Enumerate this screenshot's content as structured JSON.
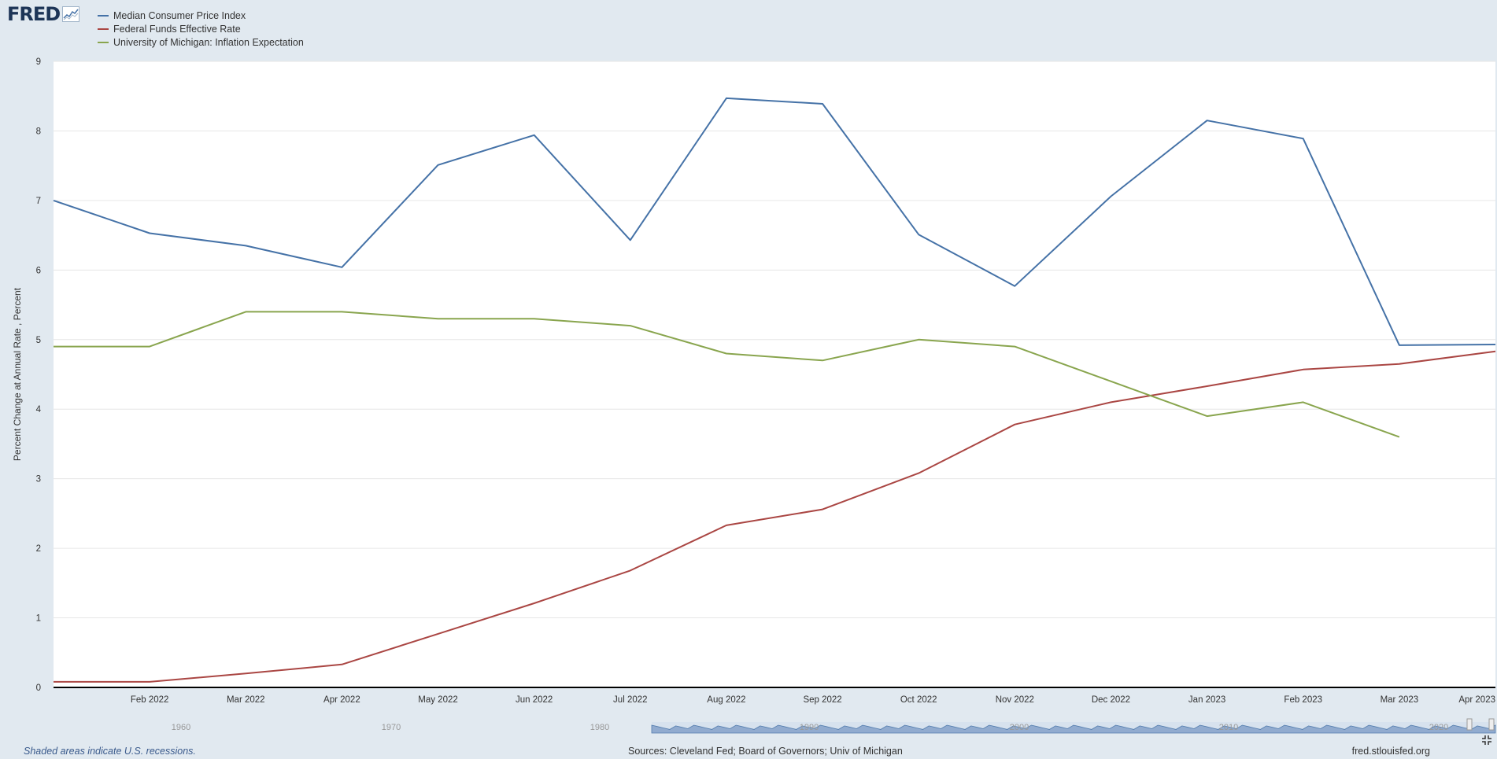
{
  "branding": {
    "logo_text": "FRED",
    "source_url": "fred.stlouisfed.org"
  },
  "footer": {
    "recession_note": "Shaded areas indicate U.S. recessions.",
    "sources": "Sources: Cleveland Fed; Board of Governors; Univ of Michigan"
  },
  "navigator": {
    "labels": [
      "1960",
      "1970",
      "1980",
      "1990",
      "2000",
      "2010",
      "2020"
    ]
  },
  "chart_data": {
    "type": "line",
    "title": "",
    "xlabel": "",
    "ylabel": "Percent Change at Annual Rate , Percent",
    "ylim": [
      0,
      9
    ],
    "yticks": [
      "0",
      "1",
      "2",
      "3",
      "4",
      "5",
      "6",
      "7",
      "8",
      "9"
    ],
    "x": [
      "2022-01",
      "2022-02",
      "2022-03",
      "2022-04",
      "2022-05",
      "2022-06",
      "2022-07",
      "2022-08",
      "2022-09",
      "2022-10",
      "2022-11",
      "2022-12",
      "2023-01",
      "2023-02",
      "2023-03",
      "2023-04"
    ],
    "xtick_labels": [
      "",
      "Feb 2022",
      "Mar 2022",
      "Apr 2022",
      "May 2022",
      "Jun 2022",
      "Jul 2022",
      "Aug 2022",
      "Sep 2022",
      "Oct 2022",
      "Nov 2022",
      "Dec 2022",
      "Jan 2023",
      "Feb 2023",
      "Mar 2023",
      "Apr 2023"
    ],
    "grid": true,
    "legend_position": "top-left",
    "series": [
      {
        "name": "Median Consumer Price Index",
        "color": "#4572a7",
        "values": [
          7.0,
          6.53,
          6.35,
          6.04,
          7.51,
          7.94,
          6.43,
          8.47,
          8.39,
          6.51,
          5.77,
          7.06,
          8.15,
          7.89,
          4.92,
          4.93
        ]
      },
      {
        "name": "Federal Funds Effective Rate",
        "color": "#aa4643",
        "values": [
          0.08,
          0.08,
          0.2,
          0.33,
          0.77,
          1.21,
          1.68,
          2.33,
          2.56,
          3.08,
          3.78,
          4.1,
          4.33,
          4.57,
          4.65,
          4.83
        ]
      },
      {
        "name": "University of Michigan: Inflation Expectation",
        "color": "#89a54e",
        "values": [
          4.9,
          4.9,
          5.4,
          5.4,
          5.3,
          5.3,
          5.2,
          4.8,
          4.7,
          5.0,
          4.9,
          4.4,
          3.9,
          4.1,
          3.6,
          null
        ]
      }
    ]
  }
}
